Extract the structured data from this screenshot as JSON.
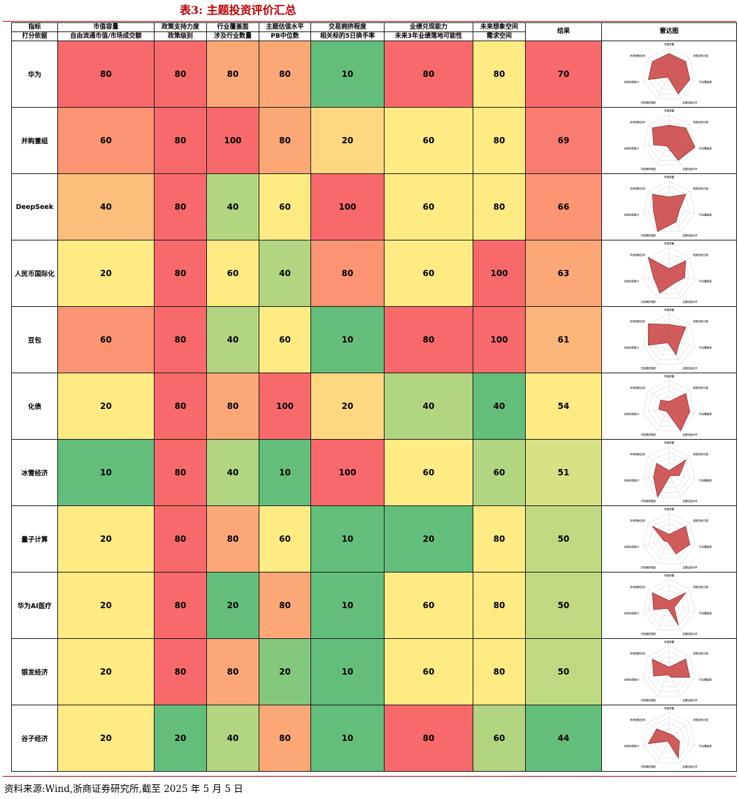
{
  "title": "表3:  主题投资评价汇总",
  "header": {
    "row1": [
      "指标",
      "市值容量",
      "政策支持力度",
      "行业覆盖面",
      "主题估值水平",
      "交易拥挤程度",
      "业绩兑现能力",
      "未来想象空间",
      "结果",
      "雷达图"
    ],
    "row2": [
      "打分依据",
      "自由流通市值/市场成交额",
      "政策级别",
      "涉及行业数量",
      "PB中位数",
      "相关标的5日换手率",
      "未来3年业绩落地可能性",
      "需求空间"
    ]
  },
  "radar_axes": [
    "市值容量",
    "政策支持力度",
    "行业覆盖面",
    "主题估值水平",
    "交易拥挤程度",
    "业绩兑现能力",
    "未来想象空间"
  ],
  "rows": [
    {
      "name": "华为",
      "scores": [
        "80",
        "80",
        "80",
        "80",
        "10",
        "80",
        "80"
      ],
      "result": "70",
      "colors": [
        "#f8696b",
        "#f8696b",
        "#fba776",
        "#fba776",
        "#63be7b",
        "#f8696b",
        "#ffeb84",
        "#f8696b"
      ]
    },
    {
      "name": "并购重组",
      "scores": [
        "60",
        "80",
        "100",
        "80",
        "20",
        "60",
        "80"
      ],
      "result": "69",
      "colors": [
        "#fa9473",
        "#f8696b",
        "#f8696b",
        "#fba776",
        "#fed880",
        "#ffeb84",
        "#ffeb84",
        "#f97b6f"
      ]
    },
    {
      "name": "DeepSeek",
      "scores": [
        "40",
        "80",
        "40",
        "60",
        "100",
        "60",
        "80"
      ],
      "result": "66",
      "colors": [
        "#fcbf7b",
        "#f8696b",
        "#b1d580",
        "#ffeb84",
        "#f8696b",
        "#ffeb84",
        "#ffeb84",
        "#fa9473"
      ]
    },
    {
      "name": "人民币国际化",
      "scores": [
        "20",
        "80",
        "60",
        "40",
        "80",
        "60",
        "100"
      ],
      "result": "63",
      "colors": [
        "#ffeb84",
        "#f8696b",
        "#ffeb84",
        "#b1d580",
        "#fa9473",
        "#ffeb84",
        "#f8696b",
        "#fba776"
      ]
    },
    {
      "name": "豆包",
      "scores": [
        "60",
        "80",
        "40",
        "60",
        "10",
        "80",
        "100"
      ],
      "result": "61",
      "colors": [
        "#fa9473",
        "#f8696b",
        "#b1d580",
        "#ffeb84",
        "#63be7b",
        "#f8696b",
        "#f8696b",
        "#fcb579"
      ]
    },
    {
      "name": "化债",
      "scores": [
        "20",
        "80",
        "80",
        "100",
        "20",
        "40",
        "40"
      ],
      "result": "54",
      "colors": [
        "#ffeb84",
        "#f8696b",
        "#fba776",
        "#f8696b",
        "#fed880",
        "#b1d580",
        "#63be7b",
        "#ffeb84"
      ]
    },
    {
      "name": "冰雪经济",
      "scores": [
        "10",
        "80",
        "40",
        "10",
        "100",
        "60",
        "60"
      ],
      "result": "51",
      "colors": [
        "#63be7b",
        "#f8696b",
        "#b1d580",
        "#63be7b",
        "#f8696b",
        "#ffeb84",
        "#b1d580",
        "#d6e283"
      ]
    },
    {
      "name": "量子计算",
      "scores": [
        "20",
        "80",
        "80",
        "60",
        "10",
        "20",
        "80"
      ],
      "result": "50",
      "colors": [
        "#ffeb84",
        "#f8696b",
        "#fba776",
        "#ffeb84",
        "#63be7b",
        "#63be7b",
        "#ffeb84",
        "#c0d981"
      ]
    },
    {
      "name": "华为AI医疗",
      "scores": [
        "20",
        "80",
        "20",
        "80",
        "10",
        "60",
        "80"
      ],
      "result": "50",
      "colors": [
        "#ffeb84",
        "#f8696b",
        "#63be7b",
        "#fba776",
        "#63be7b",
        "#ffeb84",
        "#ffeb84",
        "#c0d981"
      ]
    },
    {
      "name": "银发经济",
      "scores": [
        "20",
        "80",
        "80",
        "20",
        "10",
        "60",
        "80"
      ],
      "result": "50",
      "colors": [
        "#ffeb84",
        "#f8696b",
        "#fba776",
        "#84c87d",
        "#63be7b",
        "#ffeb84",
        "#ffeb84",
        "#c0d981"
      ]
    },
    {
      "name": "谷子经济",
      "scores": [
        "20",
        "20",
        "40",
        "80",
        "10",
        "80",
        "60"
      ],
      "result": "44",
      "colors": [
        "#ffeb84",
        "#63be7b",
        "#b1d580",
        "#fba776",
        "#63be7b",
        "#f8696b",
        "#b1d580",
        "#63be7b"
      ]
    }
  ],
  "source": "资料来源:Wind,浙商证券研究所,截至 2025 年 5 月 5 日"
}
